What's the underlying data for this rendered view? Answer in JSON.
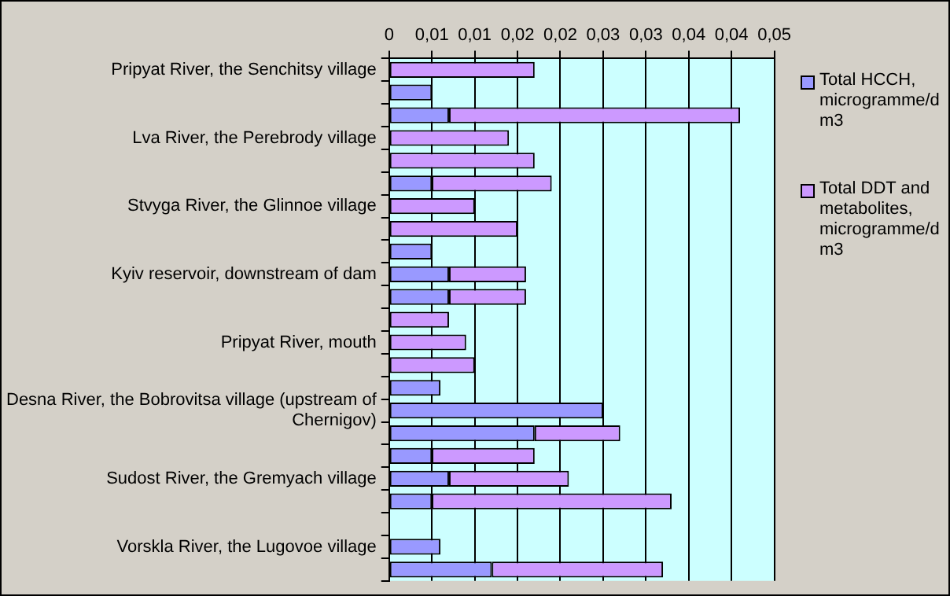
{
  "chart_data": {
    "type": "bar",
    "orientation": "horizontal",
    "stacked": true,
    "categories": [
      "Pripyat River, the Senchitsy village",
      null,
      null,
      "Lva River, the Perebrody village",
      null,
      null,
      "Stvyga River, the Glinnoe village",
      null,
      null,
      "Kyiv reservoir, downstream of dam",
      null,
      null,
      "Pripyat River, mouth",
      null,
      null,
      "Desna River, the Bobrovitsa village (upstream of Chernigov)",
      null,
      null,
      "Sudost River, the Gremyach village",
      null,
      null,
      "Vorskla River, the Lugovoe village",
      null
    ],
    "series": [
      {
        "name": "Total HCCH, microgramme/dm3",
        "color": "#9999ff",
        "values": [
          0,
          0.005,
          0.007,
          0,
          0,
          0.005,
          0,
          0,
          0.005,
          0.007,
          0.007,
          0,
          0,
          0,
          0.006,
          0.025,
          0.017,
          0.005,
          0.007,
          0.005,
          0,
          0.006,
          0.012
        ]
      },
      {
        "name": "Total DDT and metabolites, microgramme/dm3",
        "color": "#cc99ff",
        "values": [
          0.017,
          0,
          0.034,
          0.014,
          0.017,
          0.014,
          0.01,
          0.015,
          0,
          0.009,
          0.009,
          0.007,
          0.009,
          0.01,
          0,
          0,
          0.01,
          0.012,
          0.014,
          0.028,
          0,
          0,
          0.02
        ]
      }
    ],
    "xlim": [
      0,
      0.045
    ],
    "xticks": [
      0,
      {
        "value": 0.005,
        "label": "0,01"
      },
      {
        "value": 0.01,
        "label": "0,01"
      },
      {
        "value": 0.015,
        "label": "0,02"
      },
      {
        "value": 0.02,
        "label": "0,02"
      },
      {
        "value": 0.025,
        "label": "0,03"
      },
      {
        "value": 0.03,
        "label": "0,03"
      },
      {
        "value": 0.035,
        "label": "0,04"
      },
      {
        "value": 0.04,
        "label": "0,04"
      },
      {
        "value": 0.045,
        "label": "0,05"
      }
    ],
    "grid": "x",
    "legend": "right"
  }
}
